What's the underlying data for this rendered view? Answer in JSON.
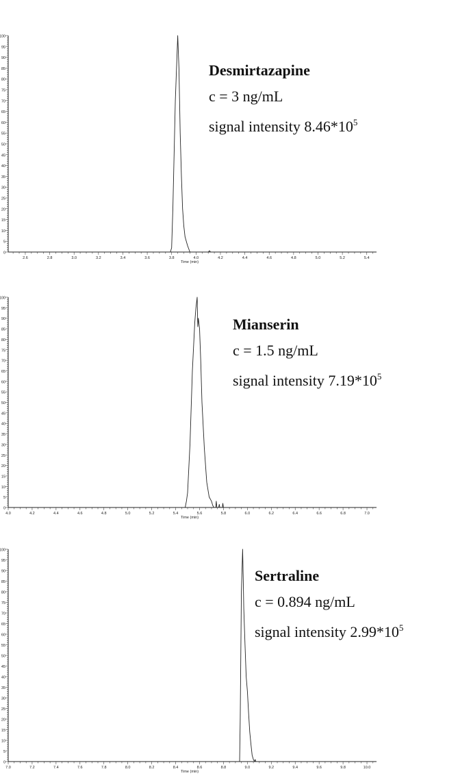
{
  "chart_data": [
    {
      "type": "line",
      "title": "Desmirtazapine",
      "concentration": "c = 3 ng/mL",
      "intensity_prefix": "signal intensity 8.46*10",
      "intensity_exp": "5",
      "xlabel": "Time (min)",
      "ylabel": "",
      "xlim": [
        2.46,
        5.48
      ],
      "ylim": [
        0,
        100
      ],
      "xticks": [
        "2.6",
        "2.8",
        "3.0",
        "3.2",
        "3.4",
        "3.6",
        "3.8",
        "4.0",
        "4.2",
        "4.4",
        "4.6",
        "4.8",
        "5.0",
        "5.2",
        "5.4"
      ],
      "yticks": [
        "0",
        "5",
        "10",
        "15",
        "20",
        "25",
        "30",
        "35",
        "40",
        "45",
        "50",
        "55",
        "60",
        "65",
        "70",
        "75",
        "80",
        "85",
        "90",
        "95",
        "100"
      ],
      "x": [
        2.46,
        3.79,
        3.8,
        3.81,
        3.83,
        3.85,
        3.86,
        3.87,
        3.88,
        3.89,
        3.9,
        3.91,
        3.93,
        3.95,
        4.1,
        4.11,
        4.12,
        5.48
      ],
      "y": [
        0,
        0,
        2,
        20,
        70,
        100,
        85,
        55,
        35,
        20,
        12,
        7,
        3,
        0,
        0,
        0.6,
        0,
        0
      ]
    },
    {
      "type": "line",
      "title": "Mianserin",
      "concentration": "c = 1.5 ng/mL",
      "intensity_prefix": "signal intensity 7.19*10",
      "intensity_exp": "5",
      "xlabel": "Time (min)",
      "ylabel": "",
      "xlim": [
        4.0,
        7.08
      ],
      "ylim": [
        0,
        100
      ],
      "xticks": [
        "4.0",
        "4.2",
        "4.4",
        "4.6",
        "4.8",
        "5.0",
        "5.2",
        "5.4",
        "5.6",
        "5.8",
        "6.0",
        "6.2",
        "6.4",
        "6.6",
        "6.8",
        "7.0"
      ],
      "yticks": [
        "0",
        "5",
        "10",
        "15",
        "20",
        "25",
        "30",
        "35",
        "40",
        "45",
        "50",
        "55",
        "60",
        "65",
        "70",
        "75",
        "80",
        "85",
        "90",
        "95",
        "100"
      ],
      "x": [
        4.0,
        5.48,
        5.49,
        5.5,
        5.52,
        5.54,
        5.56,
        5.57,
        5.58,
        5.585,
        5.59,
        5.6,
        5.61,
        5.62,
        5.64,
        5.66,
        5.68,
        5.7,
        5.71,
        5.72,
        5.735,
        5.74,
        5.745,
        5.76,
        5.765,
        5.77,
        5.79,
        5.795,
        5.8,
        7.08
      ],
      "y": [
        0,
        0,
        3,
        7,
        30,
        65,
        88,
        95,
        100,
        86,
        90,
        85,
        70,
        50,
        28,
        12,
        5,
        3,
        1,
        0,
        0,
        3,
        0,
        0,
        1.5,
        0,
        0,
        2,
        0,
        0
      ]
    },
    {
      "type": "line",
      "title": "Sertraline",
      "concentration": "c = 0.894 ng/mL",
      "intensity_prefix": "signal intensity 2.99*10",
      "intensity_exp": "5",
      "xlabel": "Time (min)",
      "ylabel": "",
      "xlim": [
        7.0,
        10.08
      ],
      "ylim": [
        0,
        100
      ],
      "xticks": [
        "7.0",
        "7.2",
        "7.4",
        "7.6",
        "7.8",
        "8.0",
        "8.2",
        "8.4",
        "8.6",
        "8.8",
        "9.0",
        "9.2",
        "9.4",
        "9.6",
        "9.8",
        "10.0"
      ],
      "yticks": [
        "0",
        "5",
        "10",
        "15",
        "20",
        "25",
        "30",
        "35",
        "40",
        "45",
        "50",
        "55",
        "60",
        "65",
        "70",
        "75",
        "80",
        "85",
        "90",
        "95",
        "100"
      ],
      "x": [
        7.0,
        8.935,
        8.94,
        8.95,
        8.96,
        8.965,
        8.97,
        8.98,
        8.99,
        9.0,
        9.01,
        9.02,
        9.03,
        9.04,
        9.05,
        9.06,
        9.065,
        9.07,
        10.08
      ],
      "y": [
        0,
        0,
        20,
        80,
        100,
        88,
        72,
        55,
        40,
        33,
        23,
        14,
        8,
        3,
        1,
        0,
        1,
        0,
        0
      ]
    }
  ]
}
